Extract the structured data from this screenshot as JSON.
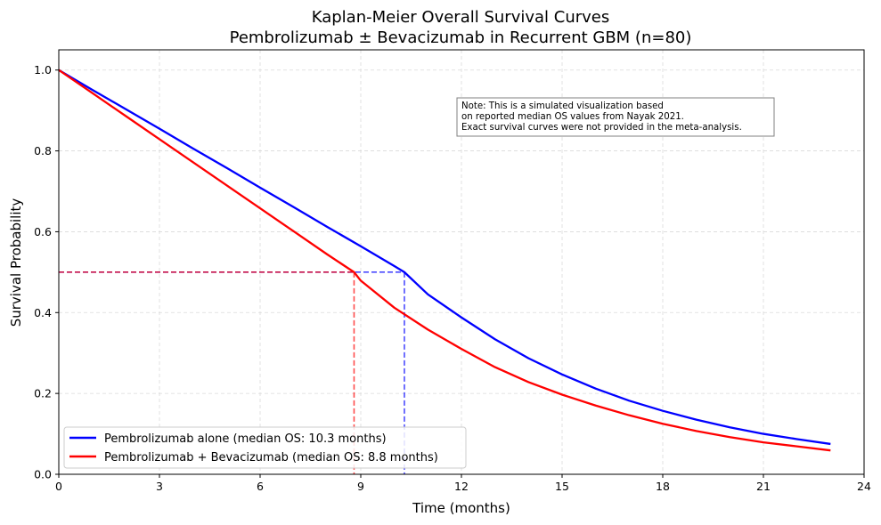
{
  "chart_data": {
    "type": "line",
    "title_line1": "Kaplan-Meier Overall Survival Curves",
    "title_line2": "Pembrolizumab ± Bevacizumab in Recurrent GBM (n=80)",
    "xlabel": "Time (months)",
    "ylabel": "Survival Probability",
    "xlim": [
      0,
      24
    ],
    "ylim": [
      0,
      1.05
    ],
    "xticks": [
      0,
      3,
      6,
      9,
      12,
      15,
      18,
      21,
      24
    ],
    "yticks": [
      0.0,
      0.2,
      0.4,
      0.6,
      0.8,
      1.0
    ],
    "xtick_labels": [
      "0",
      "3",
      "6",
      "9",
      "12",
      "15",
      "18",
      "21",
      "24"
    ],
    "ytick_labels": [
      "0.0",
      "0.2",
      "0.4",
      "0.6",
      "0.8",
      "1.0"
    ],
    "grid": true,
    "legend_position": "lower-left",
    "series": [
      {
        "name": "Pembrolizumab alone (median OS: 10.3 months)",
        "color": "#0000ff",
        "x": [
          0,
          1,
          2,
          3,
          4,
          5,
          6,
          7,
          8,
          9,
          10,
          10.3,
          11,
          12,
          13,
          14,
          15,
          16,
          17,
          18,
          19,
          20,
          21,
          22,
          23
        ],
        "y": [
          1.0,
          0.951,
          0.903,
          0.855,
          0.806,
          0.758,
          0.709,
          0.661,
          0.612,
          0.564,
          0.515,
          0.5,
          0.445,
          0.388,
          0.334,
          0.287,
          0.247,
          0.212,
          0.182,
          0.157,
          0.135,
          0.116,
          0.1,
          0.087,
          0.075
        ]
      },
      {
        "name": "Pembrolizumab + Bevacizumab (median OS: 8.8 months)",
        "color": "#ff0000",
        "x": [
          0,
          1,
          2,
          3,
          4,
          5,
          6,
          7,
          8,
          8.8,
          9,
          10,
          11,
          12,
          13,
          14,
          15,
          16,
          17,
          18,
          19,
          20,
          21,
          22,
          23
        ],
        "y": [
          1.0,
          0.943,
          0.886,
          0.829,
          0.772,
          0.715,
          0.658,
          0.601,
          0.544,
          0.5,
          0.479,
          0.412,
          0.358,
          0.31,
          0.265,
          0.228,
          0.197,
          0.17,
          0.146,
          0.125,
          0.107,
          0.092,
          0.079,
          0.069,
          0.059
        ]
      }
    ],
    "medians": [
      {
        "value": 10.3,
        "color": "#0000ff"
      },
      {
        "value": 8.8,
        "color": "#ff0000"
      }
    ],
    "median_survival_level": 0.5,
    "annotation": [
      "Note: This is a simulated visualization based",
      "on reported median OS values from Nayak 2021.",
      "Exact survival curves were not provided in the meta-analysis."
    ]
  }
}
